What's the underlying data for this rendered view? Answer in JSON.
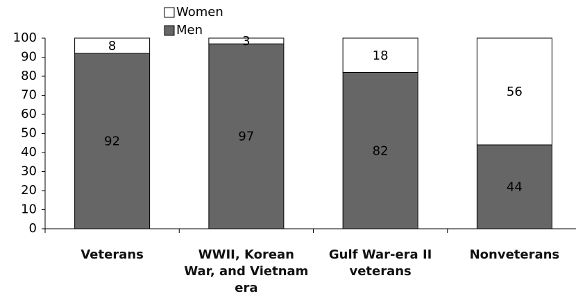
{
  "chart_data": {
    "type": "stacked_bar",
    "categories": [
      "Veterans",
      "WWII, Korean War, and Vietnam era",
      "Gulf War-era II veterans",
      "Nonveterans"
    ],
    "series": [
      {
        "name": "Men",
        "color": "#666666",
        "values": [
          92,
          97,
          82,
          44
        ]
      },
      {
        "name": "Women",
        "color": "#ffffff",
        "values": [
          8,
          3,
          18,
          56
        ]
      }
    ],
    "ylim": [
      0,
      100
    ],
    "yticks": [
      0,
      10,
      20,
      30,
      40,
      50,
      60,
      70,
      80,
      90,
      100
    ],
    "legend": "top"
  }
}
